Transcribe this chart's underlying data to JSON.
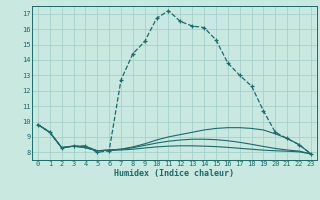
{
  "title": "",
  "xlabel": "Humidex (Indice chaleur)",
  "xlim": [
    -0.5,
    23.5
  ],
  "ylim": [
    7.5,
    17.5
  ],
  "xticks": [
    0,
    1,
    2,
    3,
    4,
    5,
    6,
    7,
    8,
    9,
    10,
    11,
    12,
    13,
    14,
    15,
    16,
    17,
    18,
    19,
    20,
    21,
    22,
    23
  ],
  "yticks": [
    8,
    9,
    10,
    11,
    12,
    13,
    14,
    15,
    16,
    17
  ],
  "bg_color": "#c8e8e0",
  "line_color": "#1a6b6b",
  "grid_color": "#a0ccc8",
  "line1_x": [
    0,
    1,
    2,
    3,
    4,
    5,
    6,
    7,
    8,
    9,
    10,
    11,
    12,
    13,
    14,
    15,
    16,
    17,
    18,
    19,
    20,
    21,
    22,
    23
  ],
  "line1_y": [
    9.8,
    9.3,
    8.3,
    8.4,
    8.4,
    8.0,
    8.1,
    12.7,
    14.4,
    15.2,
    16.7,
    17.2,
    16.5,
    16.2,
    16.1,
    15.3,
    13.8,
    13.0,
    12.3,
    10.7,
    9.3,
    8.9,
    8.5,
    7.9
  ],
  "line2_x": [
    0,
    1,
    2,
    3,
    4,
    5,
    6,
    7,
    8,
    9,
    10,
    11,
    12,
    13,
    14,
    15,
    16,
    17,
    18,
    19,
    20,
    21,
    22,
    23
  ],
  "line2_y": [
    9.8,
    9.3,
    8.3,
    8.4,
    8.4,
    8.1,
    8.15,
    8.2,
    8.35,
    8.55,
    8.8,
    9.0,
    9.15,
    9.3,
    9.45,
    9.55,
    9.6,
    9.6,
    9.55,
    9.45,
    9.2,
    8.9,
    8.5,
    7.9
  ],
  "line3_x": [
    0,
    1,
    2,
    3,
    4,
    5,
    6,
    7,
    8,
    9,
    10,
    11,
    12,
    13,
    14,
    15,
    16,
    17,
    18,
    19,
    20,
    21,
    22,
    23
  ],
  "line3_y": [
    9.8,
    9.3,
    8.3,
    8.4,
    8.3,
    8.1,
    8.15,
    8.2,
    8.3,
    8.45,
    8.6,
    8.72,
    8.8,
    8.85,
    8.85,
    8.82,
    8.75,
    8.65,
    8.52,
    8.38,
    8.25,
    8.15,
    8.08,
    7.9
  ],
  "line4_x": [
    0,
    1,
    2,
    3,
    4,
    5,
    6,
    7,
    8,
    9,
    10,
    11,
    12,
    13,
    14,
    15,
    16,
    17,
    18,
    19,
    20,
    21,
    22,
    23
  ],
  "line4_y": [
    9.8,
    9.3,
    8.3,
    8.4,
    8.3,
    8.1,
    8.12,
    8.15,
    8.2,
    8.28,
    8.35,
    8.4,
    8.42,
    8.42,
    8.4,
    8.37,
    8.32,
    8.26,
    8.2,
    8.14,
    8.1,
    8.07,
    8.03,
    7.9
  ]
}
